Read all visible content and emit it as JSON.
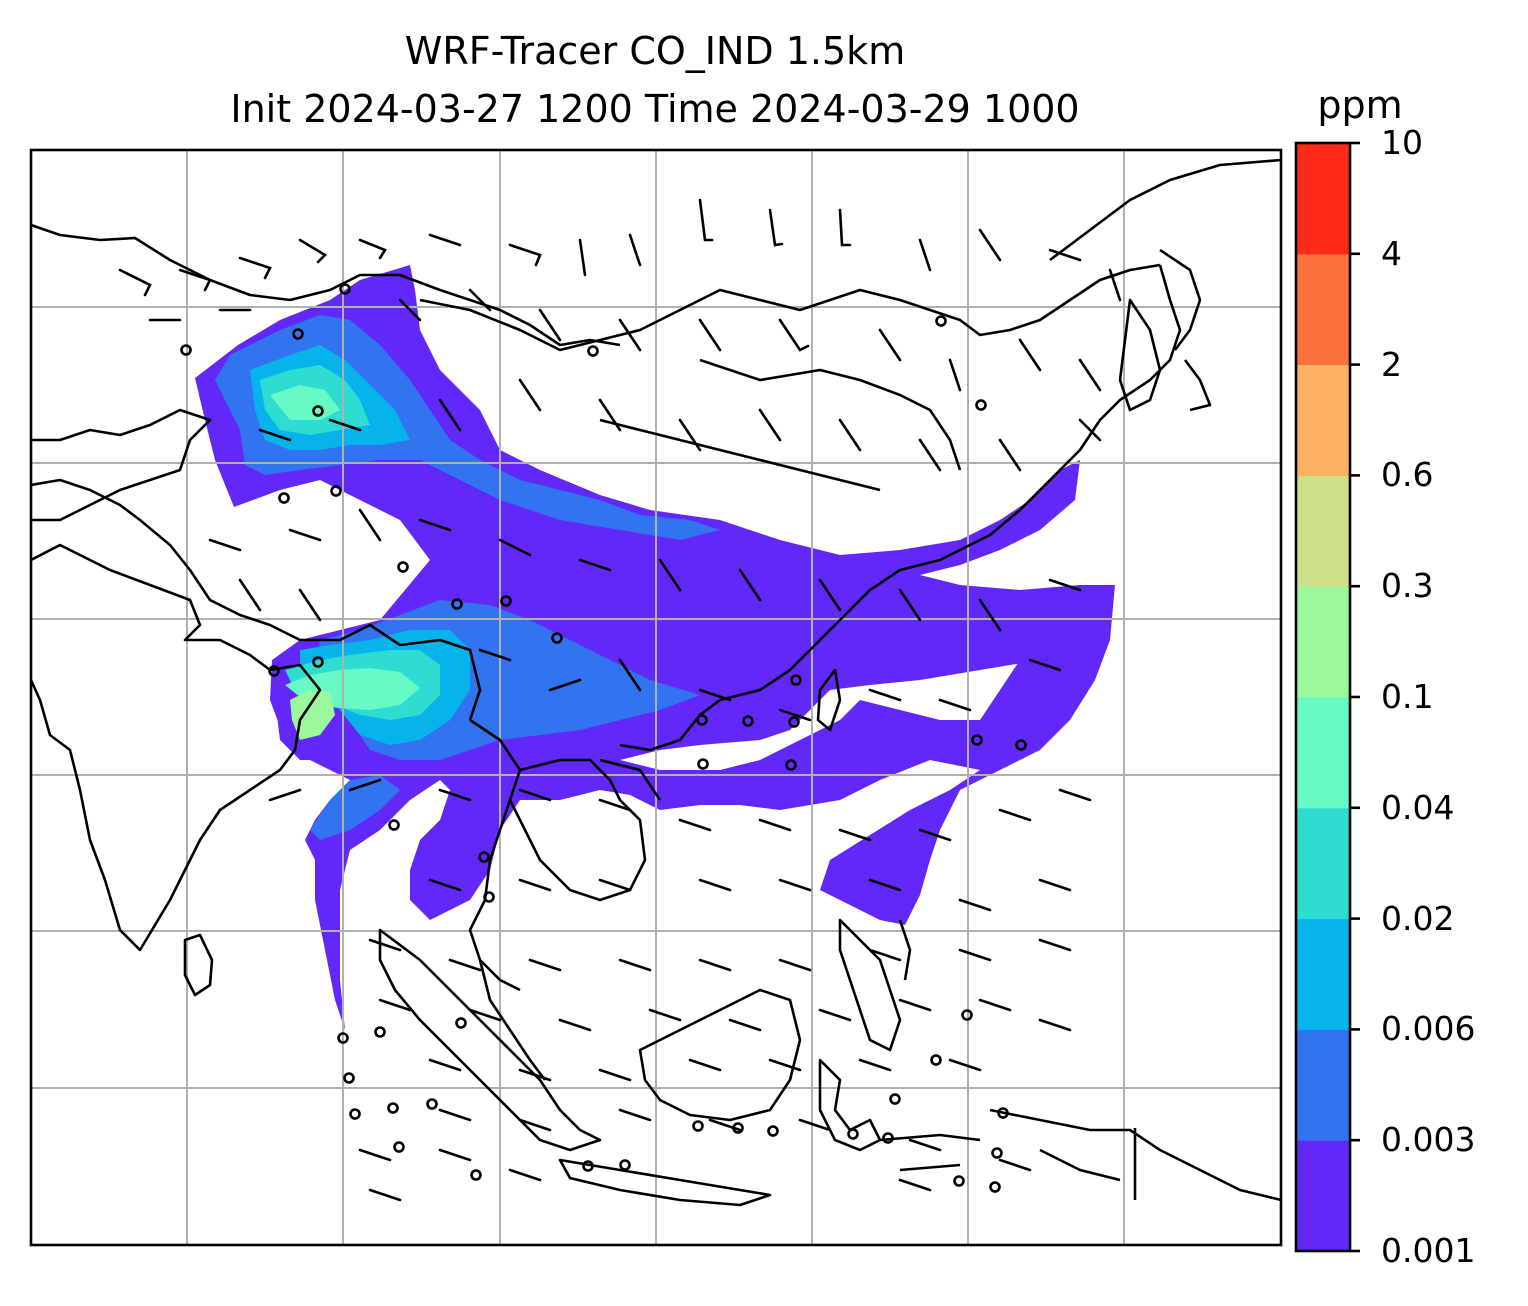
{
  "title": {
    "line1": "WRF-Tracer CO_IND 1.5km",
    "line2": "Init 2024-03-27 1200 Time 2024-03-29 1000"
  },
  "colorbar": {
    "unit": "ppm",
    "levels": [
      "0.001",
      "0.003",
      "0.006",
      "0.02",
      "0.04",
      "0.1",
      "0.3",
      "0.6",
      "2",
      "4",
      "10"
    ],
    "colors": [
      "#6228f8",
      "#3273f0",
      "#06b3ea",
      "#2fdcd2",
      "#68fac4",
      "#9bf89c",
      "#cfe08a",
      "#fbb062",
      "#fd713e",
      "#ff2a18"
    ]
  },
  "map": {
    "projection": "regional",
    "background": "#ffffff",
    "gridline_color": "#b0b0b0",
    "coastline_color": "#000000",
    "overlay": "wind barbs",
    "field": "CO_IND tracer concentration at 1.5km"
  }
}
